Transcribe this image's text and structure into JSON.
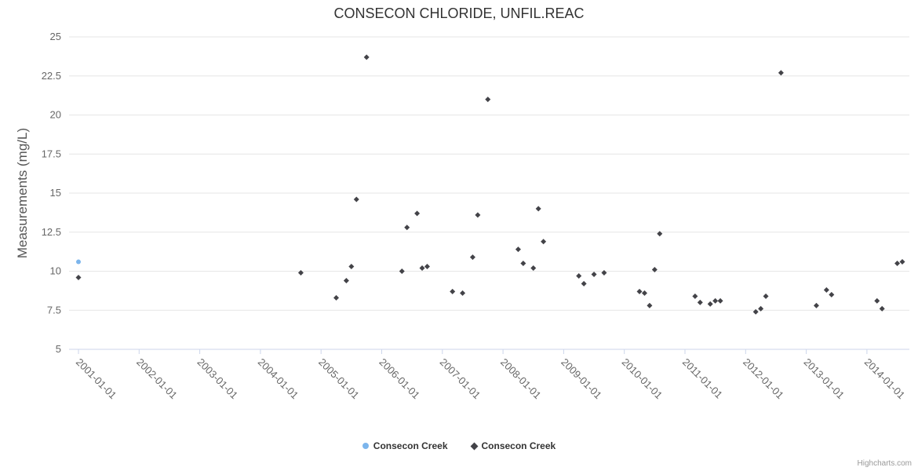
{
  "chart_data": {
    "type": "scatter",
    "title": "CONSECON CHLORIDE, UNFIL.REAC",
    "xlabel": "",
    "ylabel": "Measurements (mg/L)",
    "ylim": [
      5,
      25
    ],
    "yticks": [
      5,
      7.5,
      10,
      12.5,
      15,
      17.5,
      20,
      22.5,
      25
    ],
    "xticks": [
      "2001-01-01",
      "2002-01-01",
      "2003-01-01",
      "2004-01-01",
      "2005-01-01",
      "2006-01-01",
      "2007-01-01",
      "2008-01-01",
      "2009-01-01",
      "2010-01-01",
      "2011-01-01",
      "2012-01-01",
      "2013-01-01",
      "2014-01-01"
    ],
    "grid": "horizontal",
    "gridline_color": "#e6e6e6",
    "axis_line_color": "#ccd6eb",
    "tick_label_color": "#666666",
    "legend_position": "bottom",
    "series": [
      {
        "name": "Consecon Creek",
        "color": "#7cb5ec",
        "marker": "circle",
        "points": [
          [
            "2001-01",
            10.6
          ]
        ]
      },
      {
        "name": "Consecon Creek",
        "color": "#434348",
        "marker": "diamond",
        "points": [
          [
            "2001-01",
            9.6
          ],
          [
            "2004-09",
            9.9
          ],
          [
            "2005-04",
            8.3
          ],
          [
            "2005-06",
            9.4
          ],
          [
            "2005-07",
            10.3
          ],
          [
            "2005-08",
            14.6
          ],
          [
            "2005-10",
            23.7
          ],
          [
            "2006-05",
            10.0
          ],
          [
            "2006-06",
            12.8
          ],
          [
            "2006-08",
            13.7
          ],
          [
            "2006-09",
            10.2
          ],
          [
            "2006-10",
            10.3
          ],
          [
            "2007-03",
            8.7
          ],
          [
            "2007-05",
            8.6
          ],
          [
            "2007-07",
            10.9
          ],
          [
            "2007-08",
            13.6
          ],
          [
            "2007-10",
            21.0
          ],
          [
            "2008-04",
            11.4
          ],
          [
            "2008-05",
            10.5
          ],
          [
            "2008-07",
            10.2
          ],
          [
            "2008-08",
            14.0
          ],
          [
            "2008-09",
            11.9
          ],
          [
            "2009-04",
            9.7
          ],
          [
            "2009-05",
            9.2
          ],
          [
            "2009-07",
            9.8
          ],
          [
            "2009-09",
            9.9
          ],
          [
            "2010-04",
            8.7
          ],
          [
            "2010-05",
            8.6
          ],
          [
            "2010-06",
            7.8
          ],
          [
            "2010-07",
            10.1
          ],
          [
            "2010-08",
            12.4
          ],
          [
            "2011-03",
            8.4
          ],
          [
            "2011-04",
            8.0
          ],
          [
            "2011-06",
            7.9
          ],
          [
            "2011-07",
            8.1
          ],
          [
            "2011-08",
            8.1
          ],
          [
            "2012-03",
            7.4
          ],
          [
            "2012-04",
            7.6
          ],
          [
            "2012-05",
            8.4
          ],
          [
            "2012-08",
            22.7
          ],
          [
            "2013-03",
            7.8
          ],
          [
            "2013-05",
            8.8
          ],
          [
            "2013-06",
            8.5
          ],
          [
            "2014-03",
            8.1
          ],
          [
            "2014-04",
            7.6
          ],
          [
            "2014-07",
            10.5
          ],
          [
            "2014-08",
            10.6
          ]
        ]
      }
    ]
  },
  "credits": "Highcharts.com"
}
